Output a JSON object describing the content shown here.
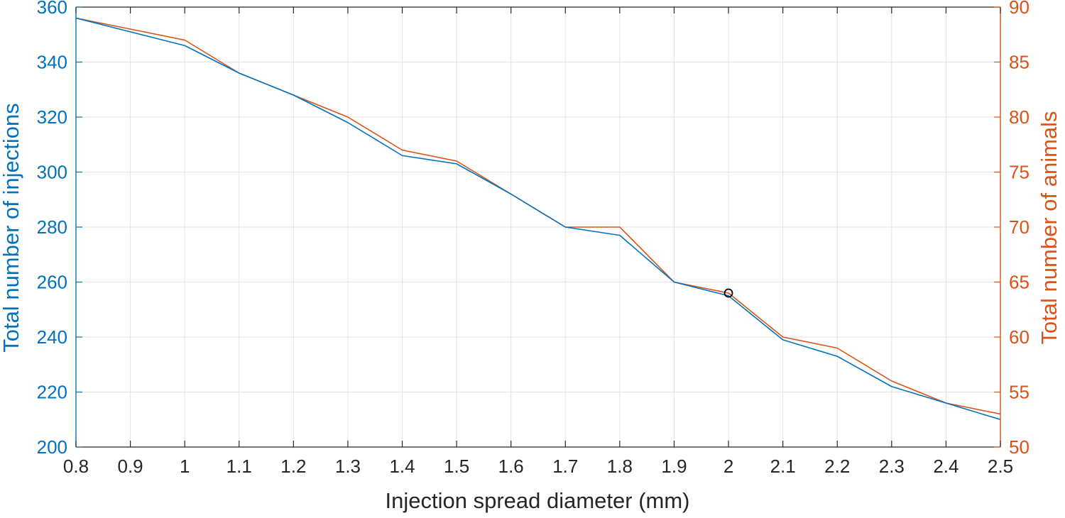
{
  "chart_data": {
    "type": "line",
    "xlabel": "Injection spread diameter (mm)",
    "ylabel_left": "Total number of injections",
    "ylabel_right": "Total number of animals",
    "xlim": [
      0.8,
      2.5
    ],
    "ylim_left": [
      200,
      360
    ],
    "ylim_right": [
      50,
      90
    ],
    "x_ticks": [
      "0.8",
      "0.9",
      "1",
      "1.1",
      "1.2",
      "1.3",
      "1.4",
      "1.5",
      "1.6",
      "1.7",
      "1.8",
      "1.9",
      "2",
      "2.1",
      "2.2",
      "2.3",
      "2.4",
      "2.5"
    ],
    "y_left_ticks": [
      "200",
      "220",
      "240",
      "260",
      "280",
      "300",
      "320",
      "340",
      "360"
    ],
    "y_right_ticks": [
      "50",
      "55",
      "60",
      "65",
      "70",
      "75",
      "80",
      "85",
      "90"
    ],
    "grid": true,
    "x": [
      0.8,
      0.9,
      1.0,
      1.1,
      1.2,
      1.3,
      1.4,
      1.5,
      1.6,
      1.7,
      1.8,
      1.9,
      2.0,
      2.1,
      2.2,
      2.3,
      2.4,
      2.5
    ],
    "series": [
      {
        "axis": "left",
        "color": "#0072BD",
        "values": [
          356,
          351,
          346,
          336,
          328,
          318,
          306,
          303,
          292,
          280,
          277,
          260,
          255,
          239,
          233,
          222,
          216,
          210
        ]
      },
      {
        "axis": "right",
        "color": "#D95319",
        "values": [
          89,
          88,
          87,
          84,
          82,
          80,
          77,
          76,
          73,
          70,
          70,
          65,
          64,
          60,
          59,
          56,
          54,
          53
        ]
      }
    ],
    "marker": {
      "x": 2.0,
      "y_left": 256,
      "shape": "circle",
      "color": "#000000"
    }
  }
}
